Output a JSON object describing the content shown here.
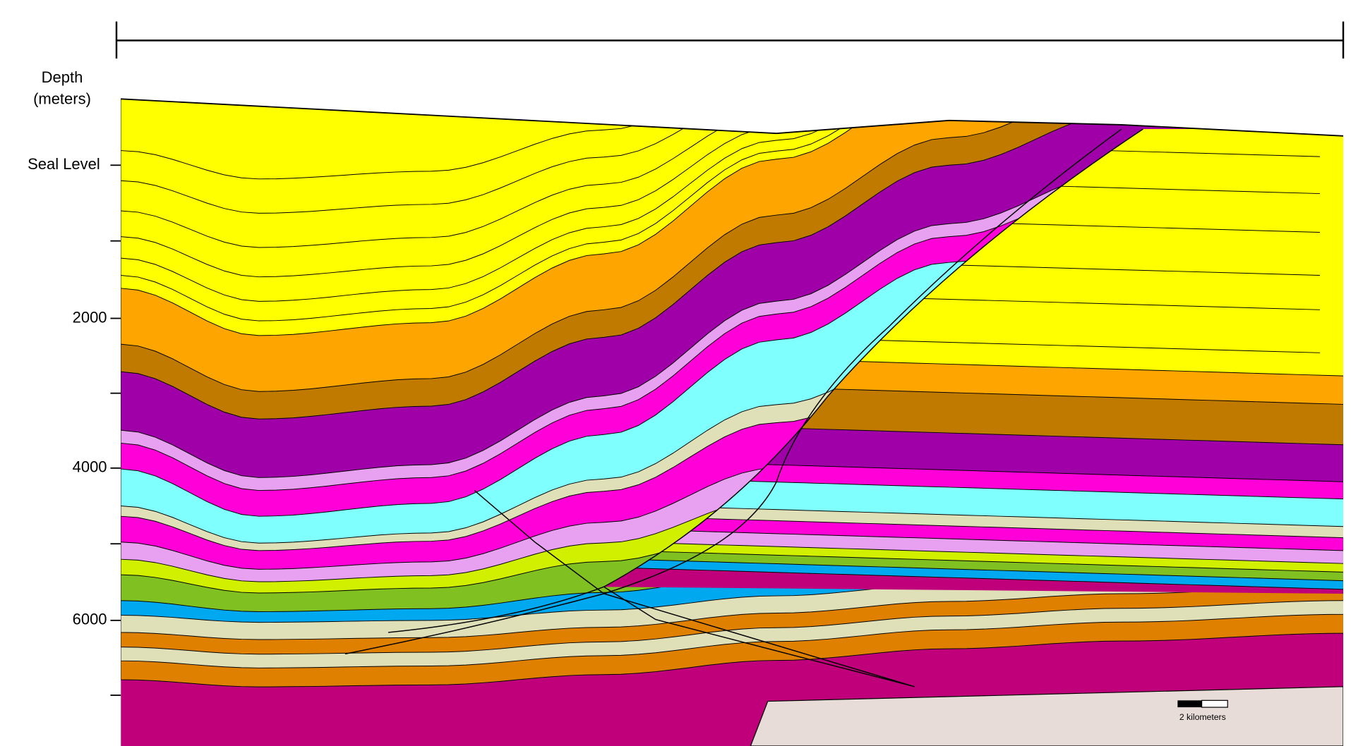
{
  "axis": {
    "title_line1": "Depth",
    "title_line2": "(meters)",
    "tick_labels": [
      "Seal Level",
      "2000",
      "4000",
      "6000"
    ]
  },
  "scale_bar": {
    "label": "2 kilometers"
  }
}
